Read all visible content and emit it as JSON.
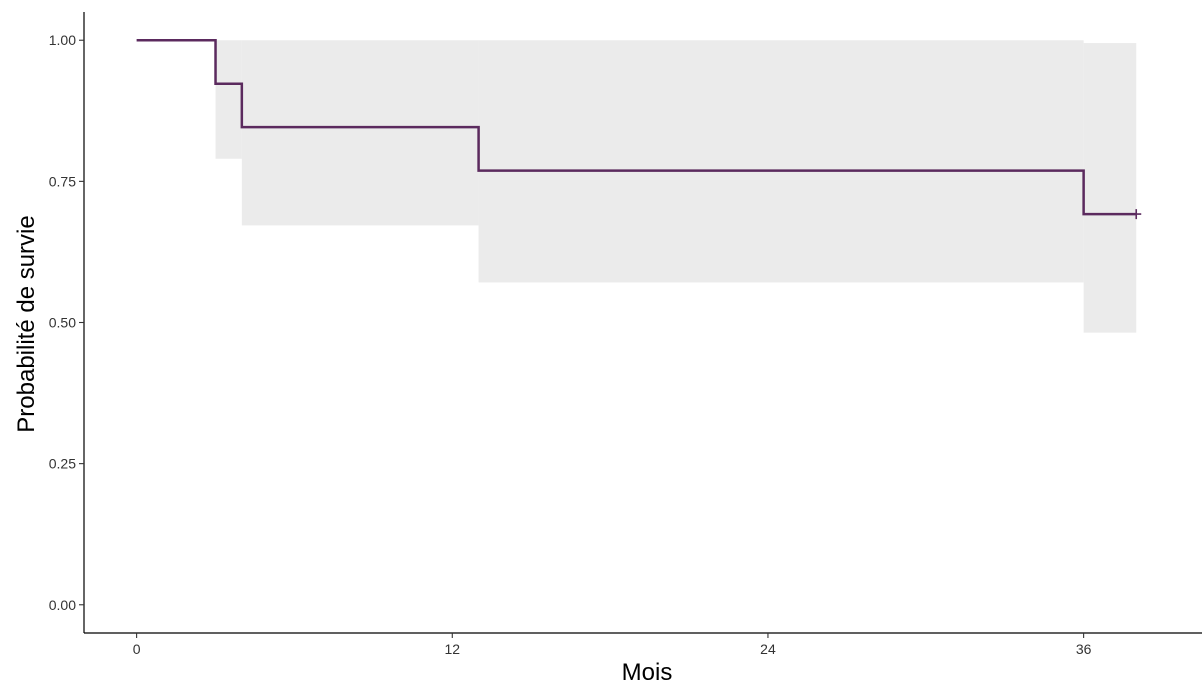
{
  "chart_data": {
    "type": "line",
    "subtype": "kaplan-meier step",
    "xlabel": "Mois",
    "ylabel": "Probabilité de survie",
    "xlim": [
      -2,
      40.5
    ],
    "ylim": [
      -0.05,
      1.05
    ],
    "x_ticks": [
      0,
      12,
      24,
      36
    ],
    "y_ticks": [
      0.0,
      0.25,
      0.5,
      0.75,
      1.0
    ],
    "x_tick_labels": [
      "0",
      "12",
      "24",
      "36"
    ],
    "y_tick_labels": [
      "0.00",
      "0.25",
      "0.50",
      "0.75",
      "1.00"
    ],
    "grid": false,
    "legend": "none",
    "line_color": "#5b2a5e",
    "ci_color": "#ebebeb",
    "steps": [
      {
        "start": 0,
        "end": 3,
        "survival": 1.0,
        "ci_lower": 1.0,
        "ci_upper": 1.0
      },
      {
        "start": 3,
        "end": 4,
        "survival": 0.923,
        "ci_lower": 0.79,
        "ci_upper": 1.0
      },
      {
        "start": 4,
        "end": 13,
        "survival": 0.846,
        "ci_lower": 0.672,
        "ci_upper": 1.0
      },
      {
        "start": 13,
        "end": 36,
        "survival": 0.769,
        "ci_lower": 0.571,
        "ci_upper": 1.0
      },
      {
        "start": 36,
        "end": 38,
        "survival": 0.692,
        "ci_lower": 0.482,
        "ci_upper": 0.995
      }
    ],
    "censor_marks": [
      {
        "x": 38,
        "y": 0.692
      }
    ]
  }
}
